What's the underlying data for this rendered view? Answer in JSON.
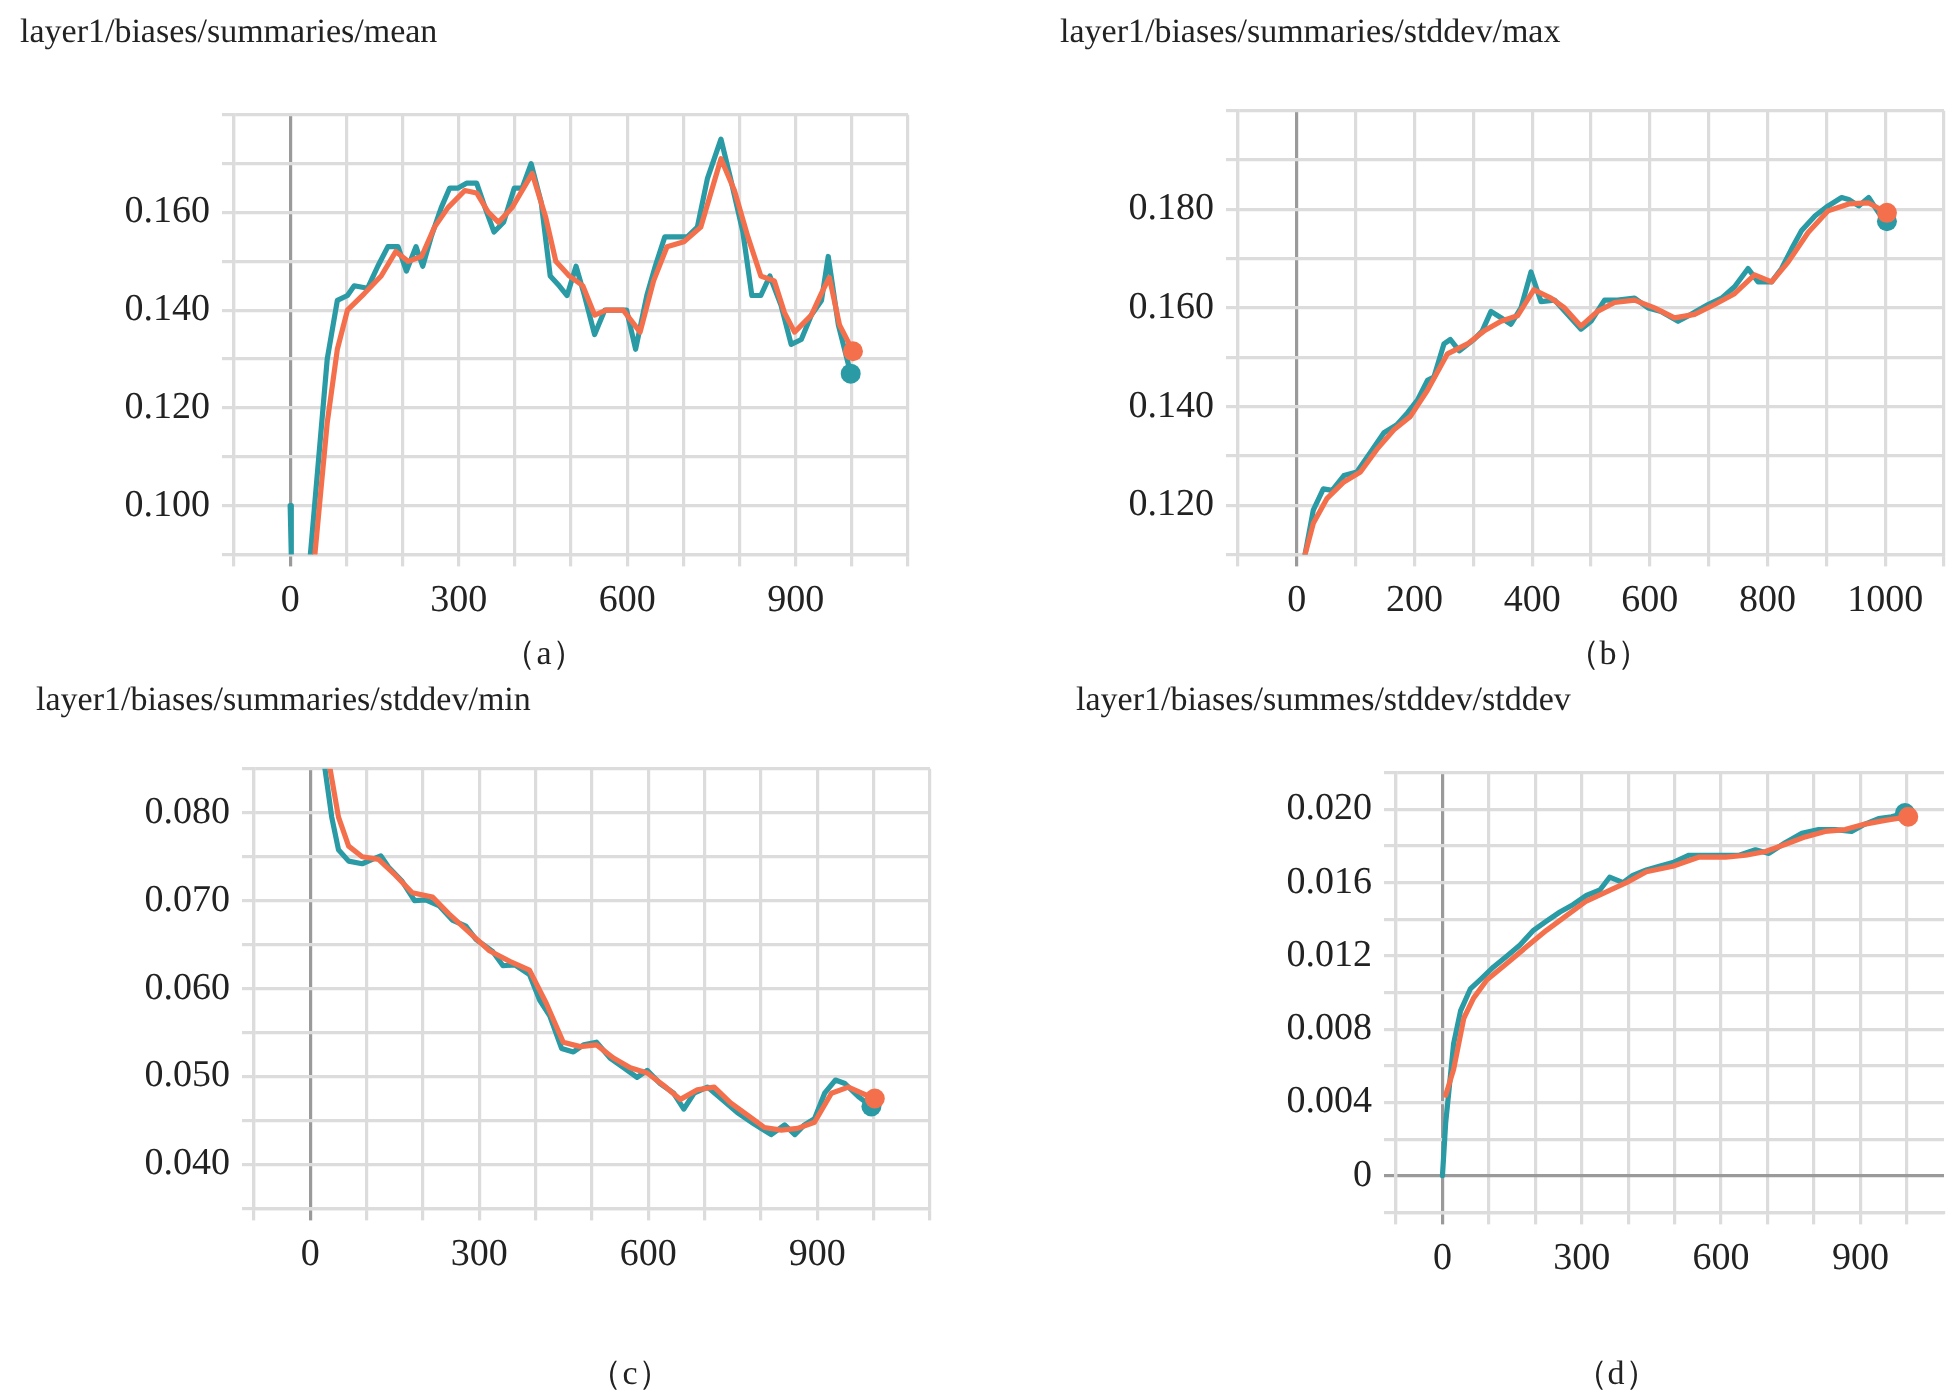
{
  "chart_data": [
    {
      "type": "line",
      "title": "layer1/biases/summaries/mean",
      "annotations": [
        "（a）"
      ],
      "grid": true,
      "xlim": [
        -100,
        1100
      ],
      "xticks": [
        {
          "value": -100,
          "label": null
        },
        0,
        {
          "value": 100,
          "label": null
        },
        {
          "value": 200,
          "label": null
        },
        300,
        {
          "value": 400,
          "label": null
        },
        {
          "value": 500,
          "label": null
        },
        600,
        {
          "value": 700,
          "label": null
        },
        {
          "value": 800,
          "label": null
        },
        900,
        {
          "value": 1000,
          "label": null
        },
        {
          "value": 1100,
          "label": null
        }
      ],
      "ylim": [
        0.09,
        0.18
      ],
      "yticks": [
        {
          "value": 0.09,
          "label": null
        },
        {
          "value": 0.1,
          "label": "0.100"
        },
        {
          "value": 0.11,
          "label": null
        },
        {
          "value": 0.12,
          "label": "0.120"
        },
        {
          "value": 0.13,
          "label": null
        },
        {
          "value": 0.14,
          "label": "0.140"
        },
        {
          "value": 0.15,
          "label": null
        },
        {
          "value": 0.16,
          "label": "0.160"
        },
        {
          "value": 0.17,
          "label": null
        },
        {
          "value": 0.18,
          "label": null
        }
      ],
      "series": [
        {
          "color": "#2a9aa5",
          "x": [
            0,
            2,
            20,
            36,
            66,
            84,
            102,
            114,
            138,
            156,
            174,
            192,
            207,
            224,
            236,
            251,
            269,
            284,
            299,
            314,
            332,
            347,
            363,
            380,
            399,
            413,
            429,
            447,
            463,
            479,
            493,
            509,
            524,
            542,
            560,
            581,
            599,
            615,
            635,
            650,
            667,
            689,
            707,
            725,
            743,
            767,
            784,
            806,
            822,
            838,
            854,
            874,
            892,
            910,
            928,
            946,
            958,
            976,
            998
          ],
          "values": [
            0.1,
            0.09,
            null,
            0.09,
            0.13,
            0.142,
            0.143,
            0.145,
            0.1445,
            0.149,
            0.153,
            0.153,
            0.148,
            0.153,
            0.149,
            0.155,
            0.161,
            0.165,
            0.165,
            0.166,
            0.166,
            0.161,
            0.156,
            0.158,
            0.165,
            0.165,
            0.17,
            0.162,
            0.147,
            0.145,
            0.143,
            0.149,
            0.143,
            0.135,
            0.14,
            0.14,
            0.14,
            0.132,
            0.143,
            0.149,
            0.155,
            0.155,
            0.155,
            0.157,
            0.167,
            0.175,
            0.167,
            0.156,
            0.143,
            0.143,
            0.147,
            0.141,
            0.133,
            0.134,
            0.139,
            0.142,
            0.151,
            0.137,
            0.127
          ]
        },
        {
          "color": "#f4704c",
          "x": [
            44,
            66,
            84,
            102,
            132,
            162,
            188,
            210,
            234,
            257,
            281,
            311,
            332,
            353,
            371,
            395,
            431,
            455,
            473,
            497,
            521,
            542,
            563,
            593,
            623,
            647,
            671,
            701,
            731,
            767,
            791,
            815,
            838,
            862,
            880,
            898,
            928,
            946,
            960,
            978,
            1002
          ],
          "values": [
            0.09,
            0.117,
            0.132,
            0.14,
            0.1434,
            0.147,
            0.152,
            0.15,
            0.151,
            0.157,
            0.161,
            0.1645,
            0.164,
            0.16,
            0.158,
            0.161,
            0.168,
            0.159,
            0.15,
            0.147,
            0.145,
            0.139,
            0.14,
            0.14,
            0.1355,
            0.146,
            0.153,
            0.154,
            0.157,
            0.171,
            0.1645,
            0.155,
            0.147,
            0.146,
            0.1395,
            0.1355,
            0.139,
            0.1435,
            0.1467,
            0.137,
            0.1316
          ]
        }
      ]
    },
    {
      "type": "line",
      "title": "layer1/biases/summaries/stddev/max",
      "annotations": [
        "（b）"
      ],
      "grid": true,
      "xlim": [
        -100,
        1100
      ],
      "xticks": [
        {
          "value": -100,
          "label": null
        },
        0,
        {
          "value": 100,
          "label": null
        },
        200,
        {
          "value": 300,
          "label": null
        },
        400,
        {
          "value": 500,
          "label": null
        },
        600,
        {
          "value": 700,
          "label": null
        },
        800,
        {
          "value": 900,
          "label": null
        },
        1000,
        {
          "value": 1100,
          "label": null
        }
      ],
      "ylim": [
        0.11,
        0.2
      ],
      "yticks": [
        {
          "value": 0.11,
          "label": null
        },
        {
          "value": 0.12,
          "label": "0.120"
        },
        {
          "value": 0.13,
          "label": null
        },
        {
          "value": 0.14,
          "label": "0.140"
        },
        {
          "value": 0.15,
          "label": null
        },
        {
          "value": 0.16,
          "label": "0.160"
        },
        {
          "value": 0.17,
          "label": null
        },
        {
          "value": 0.18,
          "label": "0.180"
        },
        {
          "value": 0.19,
          "label": null
        },
        {
          "value": 0.2,
          "label": null
        }
      ],
      "series": [
        {
          "color": "#2a9aa5",
          "x": [
            14,
            28,
            45,
            60,
            80,
            102,
            125,
            148,
            170,
            188,
            205,
            222,
            233,
            250,
            261,
            276,
            301,
            315,
            330,
            347,
            364,
            381,
            398,
            415,
            438,
            460,
            483,
            500,
            523,
            545,
            574,
            597,
            619,
            648,
            670,
            699,
            722,
            744,
            767,
            784,
            807,
            824,
            841,
            858,
            881,
            903,
            926,
            938,
            955,
            972,
            989,
            1003
          ],
          "values": [
            0.11,
            0.119,
            0.1233,
            0.123,
            0.126,
            0.1267,
            0.1307,
            0.1347,
            0.1363,
            0.1387,
            0.1413,
            0.1453,
            0.146,
            0.1527,
            0.1536,
            0.1513,
            0.1536,
            0.1553,
            0.1593,
            0.158,
            0.1567,
            0.16,
            0.1673,
            0.1613,
            0.1616,
            0.1587,
            0.1557,
            0.1573,
            0.1616,
            0.1616,
            0.162,
            0.16,
            0.1593,
            0.1573,
            0.1587,
            0.1607,
            0.162,
            0.1643,
            0.168,
            0.1653,
            0.1653,
            0.168,
            0.172,
            0.1757,
            0.1787,
            0.1807,
            0.1824,
            0.182,
            0.1807,
            0.1824,
            0.1793,
            0.1776
          ]
        },
        {
          "color": "#f4704c",
          "x": [
            14,
            28,
            51,
            80,
            108,
            136,
            165,
            193,
            222,
            256,
            290,
            318,
            347,
            375,
            403,
            432,
            455,
            483,
            511,
            540,
            574,
            608,
            642,
            676,
            710,
            744,
            778,
            807,
            835,
            869,
            903,
            938,
            972,
            1003
          ],
          "values": [
            0.11,
            0.1163,
            0.1213,
            0.1247,
            0.1267,
            0.1313,
            0.1353,
            0.138,
            0.1433,
            0.1507,
            0.1527,
            0.1553,
            0.1573,
            0.1584,
            0.1637,
            0.162,
            0.16,
            0.1563,
            0.1593,
            0.1611,
            0.1616,
            0.16,
            0.158,
            0.1587,
            0.1607,
            0.1629,
            0.1667,
            0.1653,
            0.1693,
            0.1753,
            0.1797,
            0.1811,
            0.1813,
            0.1793
          ]
        }
      ]
    },
    {
      "type": "line",
      "title": "layer1/biases/summaries/stddev/min",
      "annotations": [
        "（c）"
      ],
      "grid": true,
      "xlim": [
        -100,
        1100
      ],
      "xticks": [
        {
          "value": -100,
          "label": null
        },
        0,
        {
          "value": 100,
          "label": null
        },
        {
          "value": 200,
          "label": null
        },
        300,
        {
          "value": 400,
          "label": null
        },
        {
          "value": 500,
          "label": null
        },
        600,
        {
          "value": 700,
          "label": null
        },
        {
          "value": 800,
          "label": null
        },
        900,
        {
          "value": 1000,
          "label": null
        },
        {
          "value": 1100,
          "label": null
        }
      ],
      "ylim": [
        0.035,
        0.085
      ],
      "yticks": [
        {
          "value": 0.035,
          "label": null
        },
        {
          "value": 0.04,
          "label": "0.040"
        },
        {
          "value": 0.045,
          "label": null
        },
        {
          "value": 0.05,
          "label": "0.050"
        },
        {
          "value": 0.055,
          "label": null
        },
        {
          "value": 0.06,
          "label": "0.060"
        },
        {
          "value": 0.065,
          "label": null
        },
        {
          "value": 0.07,
          "label": "0.070"
        },
        {
          "value": 0.075,
          "label": null
        },
        {
          "value": 0.08,
          "label": "0.080"
        },
        {
          "value": 0.085,
          "label": null
        }
      ],
      "series": [
        {
          "color": "#2a9aa5",
          "x": [
            26,
            38,
            50,
            68,
            92,
            110,
            125,
            139,
            163,
            185,
            205,
            229,
            252,
            276,
            294,
            324,
            342,
            363,
            389,
            407,
            425,
            446,
            467,
            485,
            508,
            532,
            556,
            580,
            598,
            621,
            645,
            663,
            681,
            705,
            729,
            758,
            788,
            818,
            842,
            860,
            877,
            895,
            913,
            932,
            949,
            973,
            996
          ],
          "values": [
            0.085,
            0.0795,
            0.0758,
            0.0745,
            0.0742,
            0.0747,
            0.0751,
            0.0738,
            0.0722,
            0.07,
            0.0701,
            0.0694,
            0.0678,
            0.0671,
            0.0656,
            0.0642,
            0.0626,
            0.0627,
            0.0616,
            0.0587,
            0.0569,
            0.0532,
            0.0528,
            0.0536,
            0.0539,
            0.0521,
            0.051,
            0.0499,
            0.0507,
            0.0492,
            0.0481,
            0.0463,
            0.0481,
            0.0488,
            0.0475,
            0.0459,
            0.0446,
            0.0434,
            0.0445,
            0.0434,
            0.0445,
            0.0452,
            0.0481,
            0.0496,
            0.0492,
            0.0477,
            0.0466
          ]
        },
        {
          "color": "#f4704c",
          "x": [
            35,
            50,
            68,
            92,
            121,
            151,
            181,
            217,
            246,
            282,
            318,
            354,
            389,
            419,
            449,
            479,
            508,
            538,
            568,
            598,
            627,
            657,
            687,
            717,
            746,
            776,
            806,
            836,
            865,
            895,
            925,
            955,
            979,
            1002
          ],
          "values": [
            0.085,
            0.0795,
            0.0762,
            0.075,
            0.0747,
            0.0729,
            0.0709,
            0.0704,
            0.0685,
            0.0664,
            0.0643,
            0.0631,
            0.0621,
            0.0583,
            0.0539,
            0.0534,
            0.0536,
            0.0521,
            0.051,
            0.0504,
            0.049,
            0.0474,
            0.0485,
            0.0488,
            0.047,
            0.0456,
            0.0442,
            0.0439,
            0.0441,
            0.0448,
            0.0481,
            0.0488,
            0.0481,
            0.0475
          ]
        }
      ]
    },
    {
      "type": "line",
      "title": "layer1/biases/summes/stddev/stddev",
      "annotations": [
        "（d）"
      ],
      "grid": true,
      "xlim": [
        -100,
        1080
      ],
      "xticks": [
        {
          "value": -100,
          "label": null
        },
        0,
        {
          "value": 100,
          "label": null
        },
        {
          "value": 200,
          "label": null
        },
        300,
        {
          "value": 400,
          "label": null
        },
        {
          "value": 500,
          "label": null
        },
        600,
        {
          "value": 700,
          "label": null
        },
        {
          "value": 800,
          "label": null
        },
        900,
        {
          "value": 1000,
          "label": null
        }
      ],
      "ylim": [
        -0.002,
        0.022
      ],
      "yticks": [
        {
          "value": -0.002,
          "label": null
        },
        0,
        {
          "value": 0.002,
          "label": null
        },
        {
          "value": 0.004,
          "label": "0.004"
        },
        {
          "value": 0.006,
          "label": null
        },
        {
          "value": 0.008,
          "label": "0.008"
        },
        {
          "value": 0.01,
          "label": null
        },
        {
          "value": 0.012,
          "label": "0.012"
        },
        {
          "value": 0.014,
          "label": null
        },
        {
          "value": 0.016,
          "label": "0.016"
        },
        {
          "value": 0.018,
          "label": null
        },
        {
          "value": 0.02,
          "label": "0.020"
        },
        {
          "value": 0.022,
          "label": null
        }
      ],
      "series": [
        {
          "color": "#2a9aa5",
          "x": [
            0,
            7,
            13,
            24,
            39,
            60,
            81,
            110,
            139,
            167,
            196,
            224,
            253,
            281,
            310,
            339,
            360,
            389,
            410,
            439,
            467,
            496,
            531,
            567,
            596,
            639,
            674,
            703,
            739,
            774,
            810,
            846,
            881,
            910,
            939,
            967,
            996
          ],
          "values": [
            0,
            0.0029,
            0.0044,
            0.0072,
            0.009,
            0.0102,
            0.0107,
            0.0114,
            0.012,
            0.0126,
            0.0134,
            0.0139,
            0.0144,
            0.0148,
            0.0153,
            0.0156,
            0.0163,
            0.016,
            0.0164,
            0.0167,
            0.0169,
            0.0171,
            0.0175,
            0.0175,
            0.0175,
            0.0175,
            0.0178,
            0.0176,
            0.0182,
            0.0187,
            0.0189,
            0.0189,
            0.0188,
            0.0192,
            0.0195,
            0.0196,
            0.0198
          ]
        },
        {
          "color": "#f4704c",
          "x": [
            7,
            24,
            46,
            67,
            96,
            139,
            181,
            224,
            267,
            310,
            353,
            396,
            439,
            496,
            553,
            610,
            653,
            696,
            739,
            781,
            824,
            867,
            910,
            953,
            1003
          ],
          "values": [
            0.0044,
            0.0058,
            0.0086,
            0.0097,
            0.0107,
            0.0116,
            0.0125,
            0.0134,
            0.0142,
            0.015,
            0.0155,
            0.016,
            0.0166,
            0.0169,
            0.0174,
            0.0174,
            0.0175,
            0.0177,
            0.0181,
            0.0185,
            0.0188,
            0.0189,
            0.0192,
            0.0194,
            0.0196
          ]
        }
      ]
    }
  ]
}
